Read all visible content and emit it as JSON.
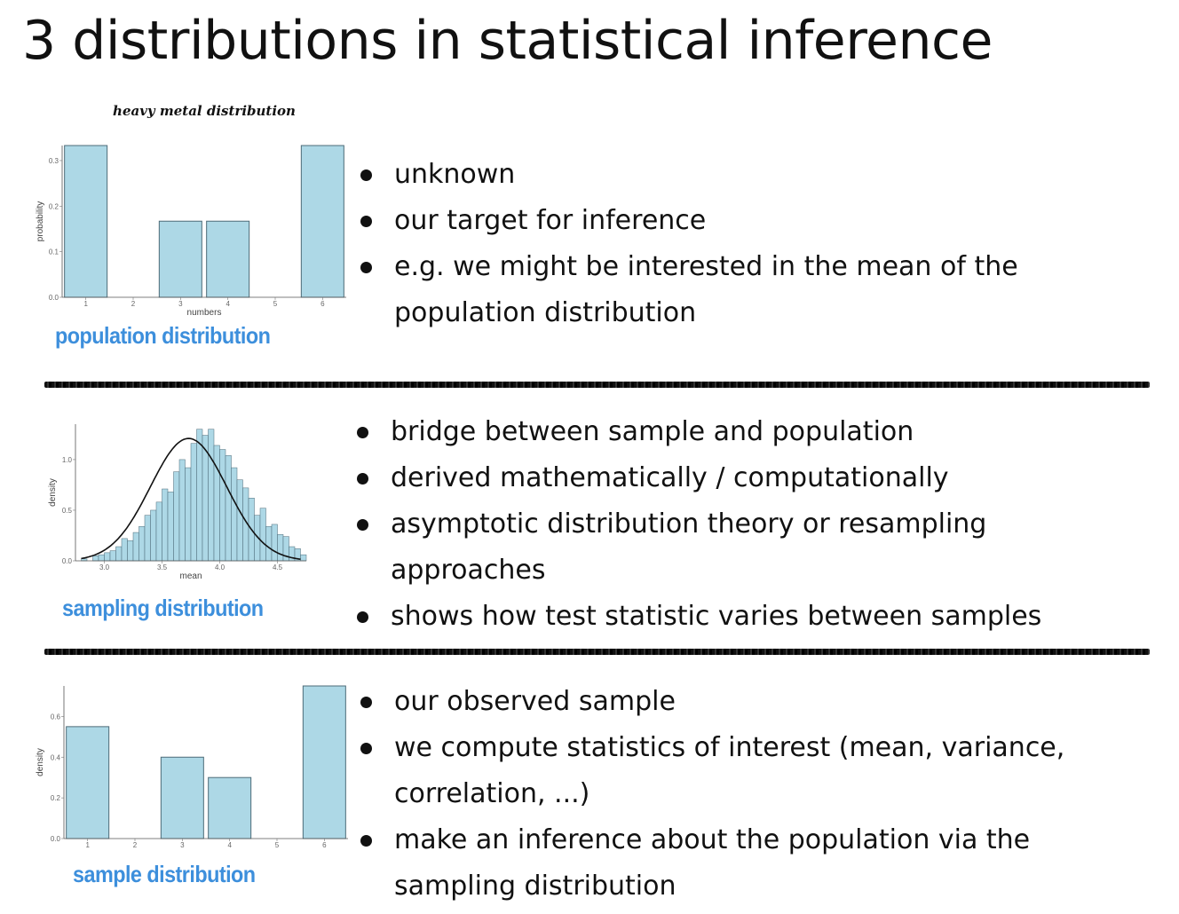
{
  "title": "3 distributions in statistical inference",
  "sections": [
    {
      "caption": "population distribution",
      "bullets": [
        "unknown",
        "our target for inference",
        "e.g. we might be interested in the mean of the",
        "population distribution"
      ]
    },
    {
      "caption": "sampling distribution",
      "bullets": [
        "bridge between sample and population",
        "derived mathematically / computationally",
        "asymptotic distribution theory or resampling",
        "approaches",
        "shows how test statistic varies between samples"
      ]
    },
    {
      "caption": "sample distribution",
      "bullets": [
        "our observed sample",
        "we compute statistics of interest (mean, variance,",
        "correlation, ...)",
        "make an inference about the population via the",
        "sampling distribution"
      ]
    }
  ],
  "colors": {
    "bar_fill": "#add8e6",
    "bar_stroke": "#4d6b78",
    "caption": "#3d8fdc",
    "curve": "#111111"
  },
  "chart_data": [
    {
      "type": "bar",
      "title": "heavy metal distribution",
      "xlabel": "numbers",
      "ylabel": "probability",
      "categories": [
        "1",
        "2",
        "3",
        "4",
        "5",
        "6"
      ],
      "values": [
        0.333,
        0,
        0.167,
        0.167,
        0,
        0.333
      ],
      "ylim": [
        0,
        0.333
      ],
      "yticks": [
        "0.0",
        "0.1",
        "0.2",
        "0.3"
      ],
      "grid": false
    },
    {
      "type": "histogram",
      "title": "",
      "xlabel": "mean",
      "ylabel": "density",
      "xticks": [
        "3.0",
        "3.5",
        "4.0",
        "4.5"
      ],
      "yticks": [
        "0.0",
        "0.5",
        "1.0"
      ],
      "xlim": [
        2.75,
        4.75
      ],
      "ylim": [
        0,
        1.35
      ],
      "bin_start": 2.8,
      "bin_width": 0.05,
      "densities": [
        0.02,
        0.0,
        0.05,
        0.06,
        0.08,
        0.1,
        0.14,
        0.22,
        0.2,
        0.28,
        0.34,
        0.45,
        0.5,
        0.58,
        0.71,
        0.68,
        0.88,
        1.0,
        0.92,
        1.16,
        1.3,
        1.24,
        1.3,
        1.14,
        1.1,
        1.04,
        0.92,
        0.8,
        0.72,
        0.62,
        0.45,
        0.52,
        0.34,
        0.36,
        0.26,
        0.24,
        0.14,
        0.12,
        0.06
      ],
      "normal_curve": {
        "mean": 3.73,
        "sd": 0.33
      },
      "grid": false
    },
    {
      "type": "bar",
      "title": "",
      "xlabel": "",
      "ylabel": "density",
      "categories": [
        "1",
        "2",
        "3",
        "4",
        "5",
        "6"
      ],
      "values": [
        0.55,
        0,
        0.4,
        0.3,
        0,
        0.75
      ],
      "ylim": [
        0,
        0.75
      ],
      "yticks": [
        "0.0",
        "0.2",
        "0.4",
        "0.6"
      ],
      "grid": false
    }
  ]
}
